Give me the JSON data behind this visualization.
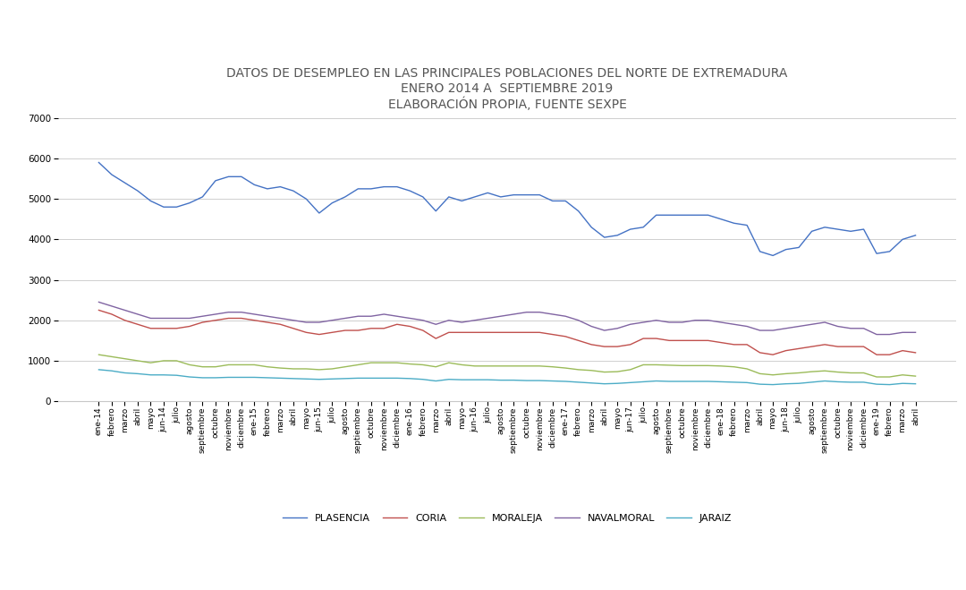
{
  "title_line1": "DATOS DE DESEMPLEO EN LAS PRINCIPALES POBLACIONES DEL NORTE DE EXTREMADURA",
  "title_line2": "ENERO 2014 A  SEPTIEMBRE 2019",
  "title_line3": "ELABORACIÓN PROPIA, FUENTE SEXPE",
  "ylim": [
    0,
    7000
  ],
  "yticks": [
    0,
    1000,
    2000,
    3000,
    4000,
    5000,
    6000,
    7000
  ],
  "colors": {
    "PLASENCIA": "#4472C4",
    "CORIA": "#C0504D",
    "MORALEJA": "#9BBB59",
    "NAVALMORAL": "#8064A2",
    "JARAIZ": "#4BACC6"
  },
  "PLASENCIA": [
    5900,
    5600,
    5400,
    5200,
    4950,
    4800,
    4800,
    4900,
    5050,
    5450,
    5550,
    5550,
    5350,
    5250,
    5300,
    5200,
    5000,
    4650,
    4900,
    5050,
    5250,
    5250,
    5300,
    5300,
    5200,
    5050,
    4700,
    5050,
    4950,
    5050,
    5150,
    5050,
    5100,
    5100,
    5100,
    4950,
    4950,
    4700,
    4300,
    4050,
    4100,
    4250,
    4300,
    4600,
    4600,
    4600,
    4600,
    4600,
    4500,
    4400,
    4350,
    3700,
    3600,
    3750,
    3800,
    4200,
    4300,
    4250,
    4200,
    4250,
    3650,
    3700,
    4000,
    4100
  ],
  "CORIA": [
    2250,
    2150,
    2000,
    1900,
    1800,
    1800,
    1800,
    1850,
    1950,
    2000,
    2050,
    2050,
    2000,
    1950,
    1900,
    1800,
    1700,
    1650,
    1700,
    1750,
    1750,
    1800,
    1800,
    1900,
    1850,
    1750,
    1550,
    1700,
    1700,
    1700,
    1700,
    1700,
    1700,
    1700,
    1700,
    1650,
    1600,
    1500,
    1400,
    1350,
    1350,
    1400,
    1550,
    1550,
    1500,
    1500,
    1500,
    1500,
    1450,
    1400,
    1400,
    1200,
    1150,
    1250,
    1300,
    1350,
    1400,
    1350,
    1350,
    1350,
    1150,
    1150,
    1250,
    1200
  ],
  "MORALEJA": [
    1150,
    1100,
    1050,
    1000,
    950,
    1000,
    1000,
    900,
    850,
    850,
    900,
    900,
    900,
    850,
    820,
    800,
    800,
    780,
    800,
    850,
    900,
    950,
    950,
    950,
    920,
    900,
    850,
    950,
    900,
    870,
    870,
    870,
    870,
    870,
    870,
    850,
    820,
    780,
    760,
    720,
    730,
    780,
    900,
    900,
    890,
    880,
    880,
    880,
    870,
    850,
    800,
    680,
    650,
    680,
    700,
    730,
    750,
    720,
    700,
    700,
    600,
    600,
    650,
    620
  ],
  "NAVALMORAL": [
    2450,
    2350,
    2250,
    2150,
    2050,
    2050,
    2050,
    2050,
    2100,
    2150,
    2200,
    2200,
    2150,
    2100,
    2050,
    2000,
    1950,
    1950,
    2000,
    2050,
    2100,
    2100,
    2150,
    2100,
    2050,
    2000,
    1900,
    2000,
    1950,
    2000,
    2050,
    2100,
    2150,
    2200,
    2200,
    2150,
    2100,
    2000,
    1850,
    1750,
    1800,
    1900,
    1950,
    2000,
    1950,
    1950,
    2000,
    2000,
    1950,
    1900,
    1850,
    1750,
    1750,
    1800,
    1850,
    1900,
    1950,
    1850,
    1800,
    1800,
    1650,
    1650,
    1700,
    1700
  ],
  "JARAIZ": [
    780,
    750,
    700,
    680,
    650,
    650,
    640,
    600,
    580,
    580,
    590,
    590,
    590,
    580,
    570,
    560,
    550,
    540,
    550,
    560,
    570,
    570,
    570,
    570,
    560,
    540,
    500,
    540,
    530,
    530,
    530,
    520,
    520,
    510,
    510,
    500,
    490,
    470,
    450,
    430,
    440,
    460,
    480,
    500,
    490,
    490,
    490,
    490,
    480,
    470,
    460,
    420,
    410,
    430,
    440,
    470,
    500,
    480,
    470,
    470,
    420,
    410,
    440,
    430
  ],
  "background_color": "#FFFFFF",
  "grid_color": "#C8C8C8",
  "title_fontsize": 10,
  "tick_fontsize": 6.5,
  "legend_fontsize": 8
}
